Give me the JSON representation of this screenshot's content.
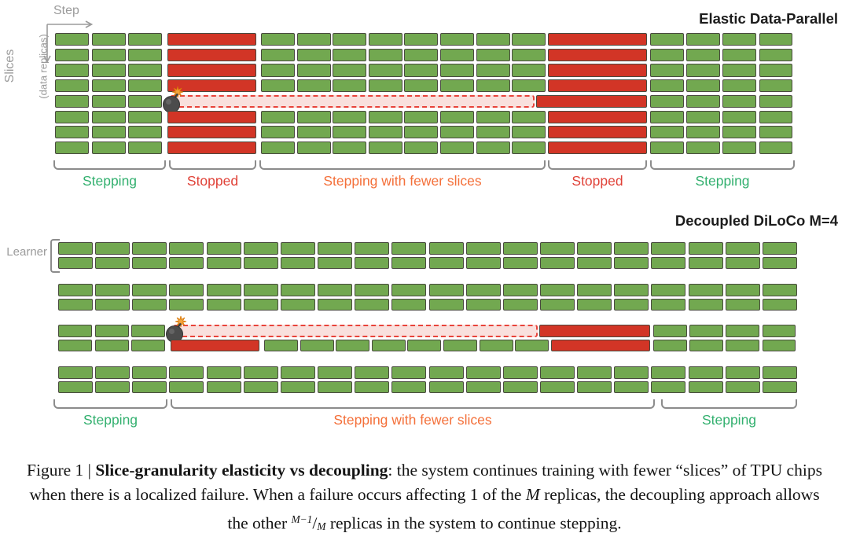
{
  "colors": {
    "block_green": "#72a850",
    "block_red": "#d23526",
    "block_border": "#494a3f",
    "failed_band_fill": "#f9e0dd",
    "failed_band_dash": "#e8433a",
    "label_green": "#33b06f",
    "label_red": "#e04238",
    "label_orange": "#f4703a",
    "axis_gray": "#9b9b9b",
    "bracket_gray": "#8c8c8c",
    "title_dark": "#1c1c1c"
  },
  "top_diagram": {
    "title": "Elastic Data-Parallel",
    "axis": {
      "x_label": "Step",
      "y_label": "Slices",
      "y_sublabel": "(data replicas)"
    },
    "rows": 8,
    "failed_row_index": 4,
    "stepping_cols": [
      3,
      8,
      4
    ],
    "phases": [
      {
        "label": "Stepping",
        "color_key": "label_green"
      },
      {
        "label": "Stopped",
        "color_key": "label_red"
      },
      {
        "label": "Stepping with fewer slices",
        "color_key": "label_orange"
      },
      {
        "label": "Stopped",
        "color_key": "label_red"
      },
      {
        "label": "Stepping",
        "color_key": "label_green"
      }
    ]
  },
  "bottom_diagram": {
    "title": "Decoupled DiLoCo M=4",
    "learner_label": "Learner",
    "replica_groups": 4,
    "rows_per_group": 2,
    "cols_per_row": 20,
    "failed_group_index": 2,
    "phases": [
      {
        "label": "Stepping",
        "color_key": "label_green"
      },
      {
        "label": "Stepping with fewer slices",
        "color_key": "label_orange"
      },
      {
        "label": "Stepping",
        "color_key": "label_green"
      }
    ]
  },
  "caption": {
    "segments": [
      {
        "t": "Figure 1 | ",
        "s": "normal"
      },
      {
        "t": "Slice-granularity elasticity vs decoupling",
        "s": "bold"
      },
      {
        "t": ": the system continues training with fewer “slices” of TPU chips when there is a localized failure. When a failure occurs affecting 1 of the ",
        "s": "normal"
      },
      {
        "t": "M",
        "s": "italic"
      },
      {
        "t": " replicas, the decoupling approach allows the other ",
        "s": "normal"
      },
      {
        "t": "M−1",
        "s": "frac-num"
      },
      {
        "t": "/",
        "s": "normal"
      },
      {
        "t": "M",
        "s": "frac-den"
      },
      {
        "t": " replicas in the system to continue stepping.",
        "s": "normal"
      }
    ]
  }
}
